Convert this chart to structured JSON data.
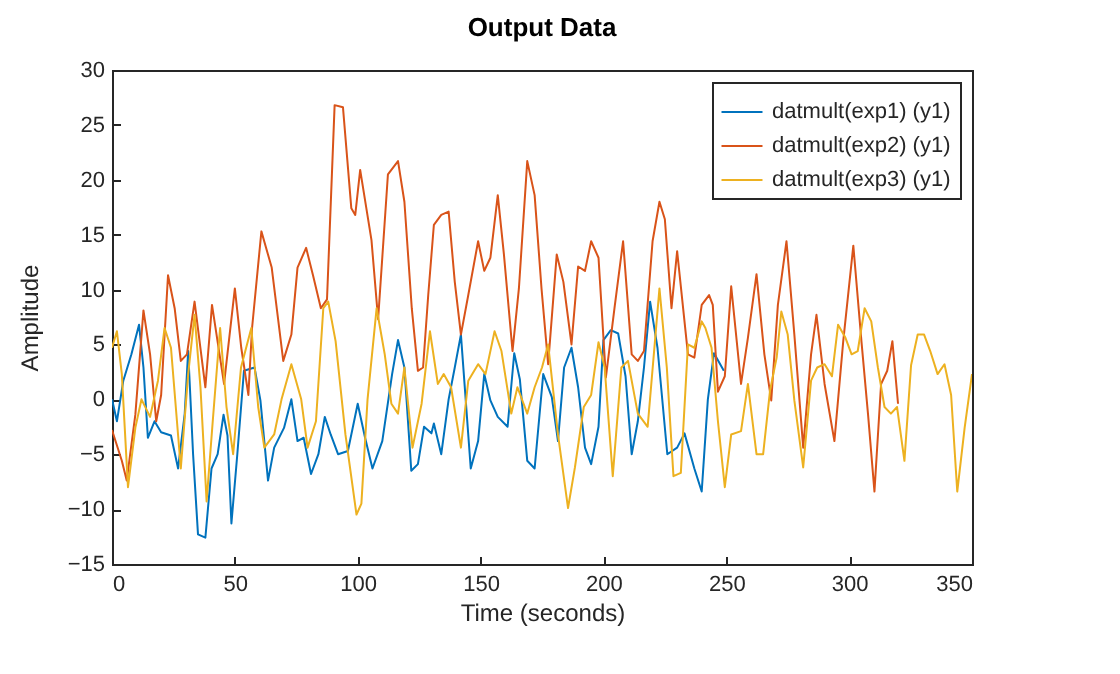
{
  "chart_data": {
    "type": "line",
    "title": "Output Data",
    "xlabel": "Time (seconds)",
    "ylabel": "Amplitude",
    "xlim": [
      0,
      350
    ],
    "xticks": [
      0,
      50,
      100,
      150,
      200,
      250,
      300,
      350
    ],
    "ylim": [
      -15,
      30
    ],
    "yticks": [
      -15,
      -10,
      -5,
      0,
      5,
      10,
      15,
      20,
      25,
      30
    ],
    "legend": "top right",
    "series": [
      {
        "name": "datmult(exp1) (y1)",
        "color": "#0072bd",
        "x": [
          0,
          2,
          4.6,
          7.9,
          11,
          12.8,
          14.6,
          17.3,
          20,
          24,
          26.9,
          29.6,
          31,
          33,
          35,
          38,
          40.5,
          43,
          45.4,
          47,
          48.6,
          51,
          53.7,
          58,
          60.4,
          63.5,
          66,
          70,
          73,
          75.5,
          78,
          81,
          84,
          86.6,
          89,
          92,
          96,
          100,
          103,
          106,
          110,
          114,
          116.4,
          119,
          121.8,
          124.5,
          127,
          130,
          131,
          134,
          137,
          139.5,
          142,
          146,
          149,
          151.5,
          154,
          157,
          161,
          163.7,
          166,
          169,
          172,
          175.5,
          179,
          181.5,
          184,
          187,
          189.7,
          192.5,
          195,
          198,
          200,
          203,
          206,
          209,
          211.5,
          214,
          216.5,
          219,
          222,
          226,
          230,
          233,
          237,
          240,
          242.5,
          245,
          249
        ],
        "values": [
          0,
          -2,
          1.7,
          4.1,
          6.8,
          2.9,
          -3.5,
          -2,
          -3,
          -3.3,
          -6.3,
          -1.3,
          4.4,
          -5,
          -12.3,
          -12.6,
          -6.3,
          -5,
          -1.4,
          -3.3,
          -11.3,
          -5,
          2.6,
          2.9,
          -0.1,
          -7.4,
          -4.4,
          -2.6,
          0,
          -3.8,
          -3.5,
          -6.8,
          -5,
          -1.6,
          -3.2,
          -5,
          -4.7,
          -0.4,
          -3.5,
          -6.3,
          -3.8,
          2.3,
          5.4,
          2.9,
          -6.5,
          -5.9,
          -2.5,
          -3.1,
          -2.2,
          -5,
          0,
          2.9,
          5.9,
          -6.3,
          -3.8,
          2.3,
          -0.1,
          -1.6,
          -2.5,
          4.2,
          1.8,
          -5.6,
          -6.3,
          2.3,
          0.2,
          -3.8,
          2.9,
          4.7,
          1.1,
          -4.4,
          -5.9,
          -2.5,
          5.4,
          6.3,
          6,
          2.1,
          -5,
          -2,
          2.9,
          8.9,
          4.7,
          -5,
          -4.4,
          -3.1,
          -6.3,
          -8.4,
          0,
          4.2,
          2.6
        ]
      },
      {
        "name": "datmult(exp2) (y1)",
        "color": "#d95319",
        "x": [
          0,
          4,
          6,
          9.5,
          12.8,
          15.5,
          18,
          20,
          22.8,
          25.5,
          28,
          30.5,
          33.6,
          38,
          40.7,
          45.6,
          50,
          52.6,
          55.5,
          57,
          60.8,
          65,
          69.7,
          73,
          75.5,
          79,
          81.8,
          85,
          87.5,
          90.6,
          94,
          97.4,
          99,
          101,
          105.6,
          108.3,
          112.3,
          116.4,
          119,
          122,
          124.5,
          126.6,
          128.7,
          131,
          134,
          137,
          139.5,
          142,
          145,
          149,
          151.5,
          154,
          157,
          159.5,
          163,
          165.6,
          169,
          172,
          174.8,
          177.5,
          181,
          183.7,
          187,
          189.7,
          192.5,
          195,
          198,
          201,
          204.5,
          208,
          211.5,
          214,
          216.5,
          220,
          222.8,
          225,
          227.7,
          230,
          234.4,
          237,
          240,
          243,
          244.5,
          246.6,
          249.4,
          252,
          256,
          258.8,
          262.3,
          265.5,
          268.3,
          271,
          274.5,
          277.7,
          281.3,
          284.5,
          286.7,
          290,
          294,
          297.6,
          301.7,
          305,
          307.7,
          310.3,
          313,
          315.5,
          317.6,
          319.9
        ],
        "values": [
          -2.8,
          -5.6,
          -7.4,
          -1.4,
          8.1,
          4.1,
          -2,
          0.4,
          11.3,
          8.3,
          3.5,
          4.1,
          8.9,
          1.1,
          8.6,
          1.4,
          10.1,
          4.7,
          0.4,
          6.5,
          15.3,
          12,
          3.5,
          5.9,
          12,
          13.8,
          11.3,
          8.3,
          9.1,
          26.8,
          26.6,
          17.4,
          16.8,
          20.9,
          14.5,
          7.3,
          20.5,
          21.7,
          18,
          8.3,
          2.6,
          2.9,
          9.5,
          15.9,
          16.8,
          17.1,
          10.7,
          5.9,
          9.5,
          14.4,
          11.7,
          12.9,
          18.6,
          13.2,
          4.4,
          10.1,
          21.7,
          18.6,
          10.1,
          3.2,
          13.2,
          10.7,
          5,
          12.1,
          11.7,
          14.4,
          12.9,
          2,
          8.3,
          14.4,
          4.1,
          3.5,
          4.4,
          14.4,
          18,
          16.4,
          8.3,
          13.5,
          4.1,
          3.8,
          8.6,
          9.5,
          8.6,
          0.7,
          2.1,
          10.3,
          1.4,
          5.6,
          11.4,
          4.1,
          -0.1,
          8.6,
          14.4,
          5.9,
          -4.4,
          4.1,
          7.7,
          1.4,
          -3.8,
          5.3,
          14,
          5.3,
          -1.4,
          -8.4,
          1.4,
          2.6,
          5.3,
          -0.4
        ]
      },
      {
        "name": "datmult(exp3) (y1)",
        "color": "#edb120",
        "x": [
          0,
          2,
          4,
          6.5,
          9.5,
          12,
          15.5,
          18.7,
          21.4,
          24,
          28,
          31,
          33.6,
          36,
          38.5,
          41,
          44,
          46.6,
          49.3,
          52.5,
          56.7,
          59.5,
          62,
          66,
          69,
          73,
          77,
          79.6,
          83,
          86,
          88,
          91,
          95,
          99.5,
          101.5,
          104,
          107.7,
          111,
          113.7,
          116.4,
          119,
          122.3,
          126,
          129.4,
          132.6,
          135,
          138,
          142,
          145,
          149,
          152,
          155.7,
          158.5,
          162.5,
          165,
          169,
          172,
          175,
          177.5,
          181.5,
          185.6,
          188.4,
          192,
          195,
          198,
          200.5,
          203.8,
          207.3,
          210,
          214,
          218,
          222.8,
          225.8,
          228.5,
          231.5,
          234.4,
          237,
          240,
          241.5,
          244,
          246.6,
          249.4,
          252,
          256,
          258.8,
          262.3,
          265,
          267.8,
          270.5,
          272.4,
          275,
          277.7,
          281.3,
          284.5,
          287,
          290,
          293,
          295.5,
          298.5,
          301,
          303.5,
          306.3,
          309,
          311.7,
          314.4,
          317,
          319.5,
          322.5,
          325.2,
          327.9,
          330.5,
          333,
          336,
          338.8,
          341.5,
          344,
          347,
          350
        ],
        "values": [
          4.7,
          6.2,
          2.3,
          -8,
          -2.6,
          0,
          -1.6,
          1.7,
          6.5,
          4.7,
          -6.3,
          2.3,
          7.7,
          1.1,
          -9.3,
          -2,
          6.5,
          -0.7,
          -5,
          2.9,
          6.5,
          -0.7,
          -4.4,
          -3.2,
          0,
          3.2,
          0,
          -4.4,
          -2,
          8.3,
          8.9,
          5.3,
          -3.2,
          -10.5,
          -9.5,
          0,
          8.3,
          4.1,
          -0.4,
          -1.3,
          2.9,
          -4.4,
          -0.4,
          6.2,
          1.4,
          2.3,
          1.1,
          -4.4,
          1.7,
          3.2,
          2.3,
          6.2,
          4.4,
          -1.3,
          1.1,
          -1.3,
          1.1,
          2.9,
          5,
          -3.2,
          -9.9,
          -6.2,
          -0.7,
          0.4,
          5.2,
          2.9,
          -7,
          2.9,
          3.5,
          -1.3,
          -2.5,
          10.1,
          2.9,
          -7,
          -6.7,
          5,
          4.7,
          7.1,
          6.5,
          4.7,
          -2,
          -8,
          -3.2,
          -2.9,
          1.4,
          -5,
          -5,
          0.8,
          3.8,
          8,
          5.9,
          -0.1,
          -6.2,
          1.7,
          2.9,
          3.2,
          2.1,
          6.8,
          5.6,
          4.1,
          4.4,
          8.3,
          7.1,
          2.9,
          -0.7,
          -1.3,
          -0.7,
          -5.6,
          3.1,
          5.9,
          5.9,
          4.4,
          2.3,
          3.2,
          0.4,
          -8.4,
          -2.6,
          2.3
        ]
      }
    ]
  }
}
